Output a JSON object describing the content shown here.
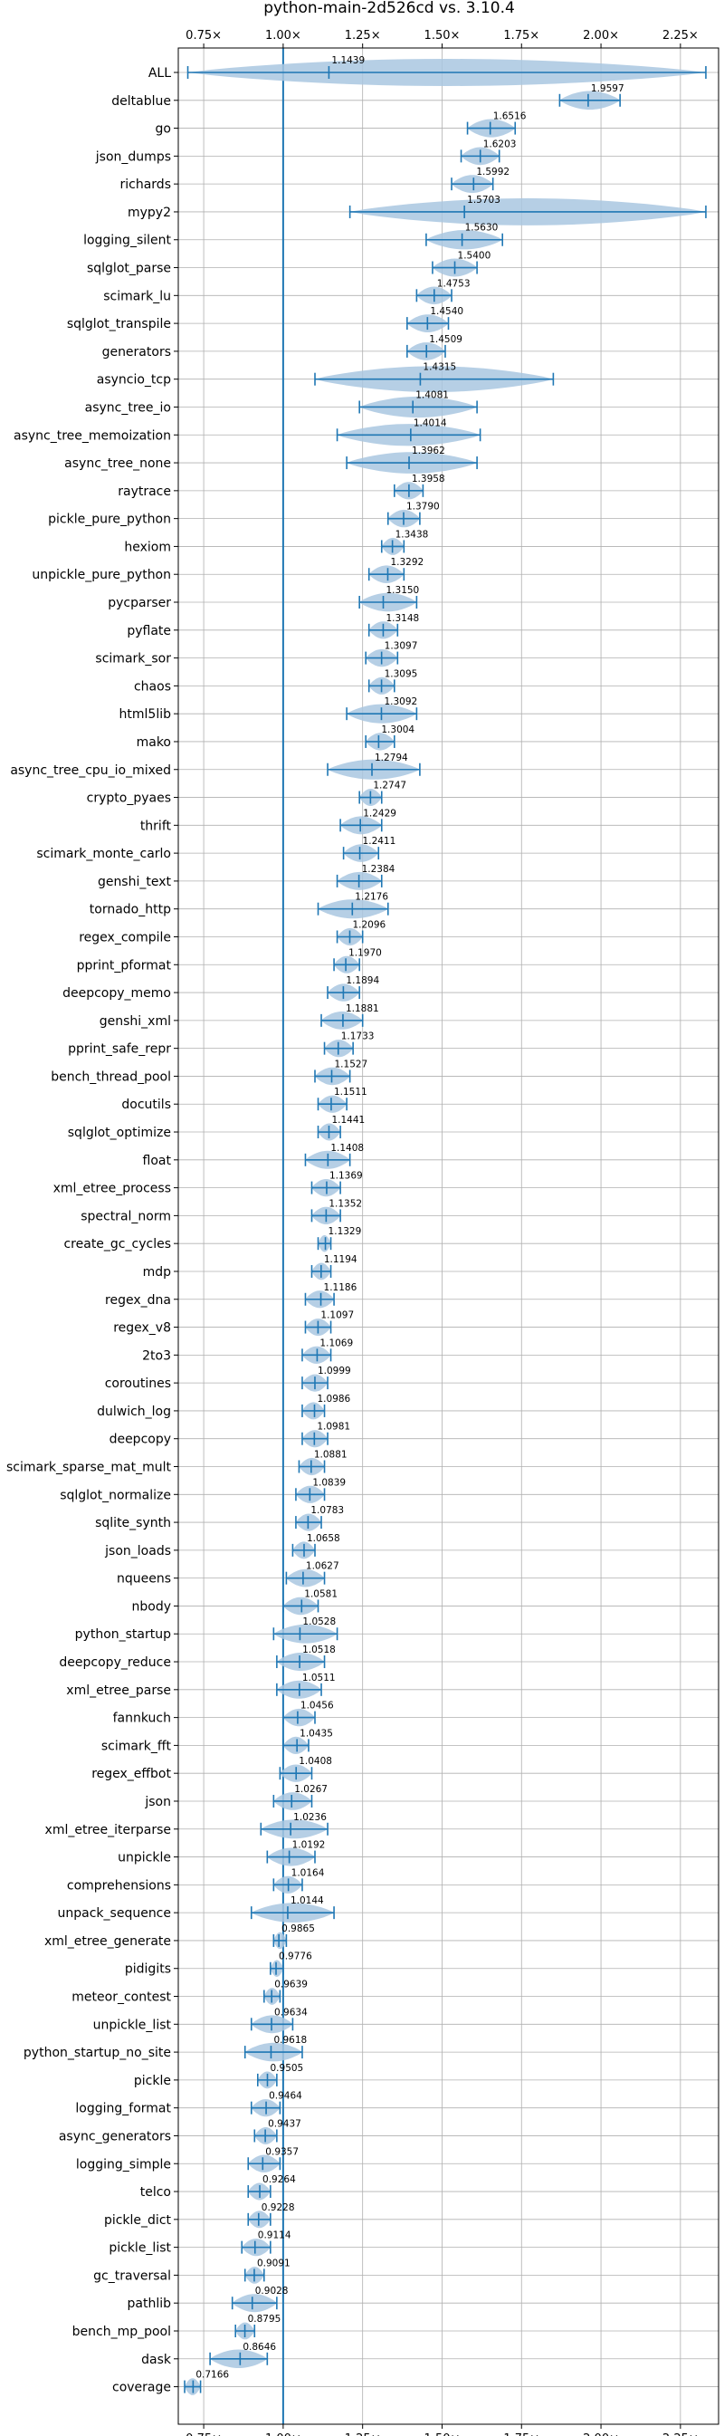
{
  "chart_data": {
    "type": "violin",
    "title": "python-main-2d526cd vs. 3.10.4",
    "xlim": [
      0.67,
      2.37
    ],
    "xticks": [
      0.75,
      1.0,
      1.25,
      1.5,
      1.75,
      2.0,
      2.25
    ],
    "xtick_labels": [
      "0.75×",
      "1.00×",
      "1.25×",
      "1.50×",
      "1.75×",
      "2.00×",
      "2.25×"
    ],
    "reference_line": 1.0,
    "grid": true,
    "colors": {
      "violin": "#a9c7e0",
      "whisker": "#1f77b4",
      "reference": "#1f77b4"
    },
    "categories": [
      "ALL",
      "deltablue",
      "go",
      "json_dumps",
      "richards",
      "mypy2",
      "logging_silent",
      "sqlglot_parse",
      "scimark_lu",
      "sqlglot_transpile",
      "generators",
      "asyncio_tcp",
      "async_tree_io",
      "async_tree_memoization",
      "async_tree_none",
      "raytrace",
      "pickle_pure_python",
      "hexiom",
      "unpickle_pure_python",
      "pycparser",
      "pyflate",
      "scimark_sor",
      "chaos",
      "html5lib",
      "mako",
      "async_tree_cpu_io_mixed",
      "crypto_pyaes",
      "thrift",
      "scimark_monte_carlo",
      "genshi_text",
      "tornado_http",
      "regex_compile",
      "pprint_pformat",
      "deepcopy_memo",
      "genshi_xml",
      "pprint_safe_repr",
      "bench_thread_pool",
      "docutils",
      "sqlglot_optimize",
      "float",
      "xml_etree_process",
      "spectral_norm",
      "create_gc_cycles",
      "mdp",
      "regex_dna",
      "regex_v8",
      "2to3",
      "coroutines",
      "dulwich_log",
      "deepcopy",
      "scimark_sparse_mat_mult",
      "sqlglot_normalize",
      "sqlite_synth",
      "json_loads",
      "nqueens",
      "nbody",
      "python_startup",
      "deepcopy_reduce",
      "xml_etree_parse",
      "fannkuch",
      "scimark_fft",
      "regex_effbot",
      "json",
      "xml_etree_iterparse",
      "unpickle",
      "comprehensions",
      "unpack_sequence",
      "xml_etree_generate",
      "pidigits",
      "meteor_contest",
      "unpickle_list",
      "python_startup_no_site",
      "pickle",
      "logging_format",
      "async_generators",
      "logging_simple",
      "telco",
      "pickle_dict",
      "pickle_list",
      "gc_traversal",
      "pathlib",
      "bench_mp_pool",
      "dask",
      "coverage"
    ],
    "values": [
      1.1439,
      1.9597,
      1.6516,
      1.6203,
      1.5992,
      1.5703,
      1.563,
      1.54,
      1.4753,
      1.454,
      1.4509,
      1.4315,
      1.4081,
      1.4014,
      1.3962,
      1.3958,
      1.379,
      1.3438,
      1.3292,
      1.315,
      1.3148,
      1.3097,
      1.3095,
      1.3092,
      1.3004,
      1.2794,
      1.2747,
      1.2429,
      1.2411,
      1.2384,
      1.2176,
      1.2096,
      1.197,
      1.1894,
      1.1881,
      1.1733,
      1.1527,
      1.1511,
      1.1441,
      1.1408,
      1.1369,
      1.1352,
      1.1329,
      1.1194,
      1.1186,
      1.1097,
      1.1069,
      1.0999,
      1.0986,
      1.0981,
      1.0881,
      1.0839,
      1.0783,
      1.0658,
      1.0627,
      1.0581,
      1.0528,
      1.0518,
      1.0511,
      1.0456,
      1.0435,
      1.0408,
      1.0267,
      1.0236,
      1.0192,
      1.0164,
      1.0144,
      0.9865,
      0.9776,
      0.9639,
      0.9634,
      0.9618,
      0.9505,
      0.9464,
      0.9437,
      0.9357,
      0.9264,
      0.9228,
      0.9114,
      0.9091,
      0.9028,
      0.8795,
      0.8646,
      0.7166
    ],
    "ranges": [
      [
        0.7,
        2.33
      ],
      [
        1.87,
        2.06
      ],
      [
        1.58,
        1.73
      ],
      [
        1.56,
        1.68
      ],
      [
        1.53,
        1.66
      ],
      [
        1.21,
        2.33
      ],
      [
        1.45,
        1.69
      ],
      [
        1.47,
        1.61
      ],
      [
        1.42,
        1.53
      ],
      [
        1.39,
        1.52
      ],
      [
        1.39,
        1.51
      ],
      [
        1.1,
        1.85
      ],
      [
        1.24,
        1.61
      ],
      [
        1.17,
        1.62
      ],
      [
        1.2,
        1.61
      ],
      [
        1.35,
        1.44
      ],
      [
        1.33,
        1.43
      ],
      [
        1.31,
        1.38
      ],
      [
        1.27,
        1.38
      ],
      [
        1.24,
        1.42
      ],
      [
        1.27,
        1.36
      ],
      [
        1.26,
        1.36
      ],
      [
        1.27,
        1.35
      ],
      [
        1.2,
        1.42
      ],
      [
        1.26,
        1.35
      ],
      [
        1.14,
        1.43
      ],
      [
        1.24,
        1.31
      ],
      [
        1.18,
        1.31
      ],
      [
        1.19,
        1.3
      ],
      [
        1.17,
        1.31
      ],
      [
        1.11,
        1.33
      ],
      [
        1.17,
        1.25
      ],
      [
        1.16,
        1.24
      ],
      [
        1.14,
        1.24
      ],
      [
        1.12,
        1.25
      ],
      [
        1.13,
        1.22
      ],
      [
        1.1,
        1.21
      ],
      [
        1.11,
        1.2
      ],
      [
        1.11,
        1.18
      ],
      [
        1.07,
        1.21
      ],
      [
        1.09,
        1.18
      ],
      [
        1.09,
        1.18
      ],
      [
        1.11,
        1.15
      ],
      [
        1.09,
        1.15
      ],
      [
        1.07,
        1.16
      ],
      [
        1.07,
        1.15
      ],
      [
        1.06,
        1.15
      ],
      [
        1.06,
        1.14
      ],
      [
        1.06,
        1.13
      ],
      [
        1.06,
        1.14
      ],
      [
        1.05,
        1.13
      ],
      [
        1.04,
        1.13
      ],
      [
        1.04,
        1.12
      ],
      [
        1.03,
        1.1
      ],
      [
        1.01,
        1.13
      ],
      [
        1.0,
        1.11
      ],
      [
        0.97,
        1.17
      ],
      [
        0.98,
        1.13
      ],
      [
        0.98,
        1.12
      ],
      [
        1.0,
        1.1
      ],
      [
        1.0,
        1.08
      ],
      [
        0.99,
        1.09
      ],
      [
        0.97,
        1.09
      ],
      [
        0.93,
        1.14
      ],
      [
        0.95,
        1.1
      ],
      [
        0.97,
        1.06
      ],
      [
        0.9,
        1.16
      ],
      [
        0.97,
        1.01
      ],
      [
        0.96,
        1.0
      ],
      [
        0.94,
        0.99
      ],
      [
        0.9,
        1.03
      ],
      [
        0.88,
        1.06
      ],
      [
        0.92,
        0.98
      ],
      [
        0.9,
        0.99
      ],
      [
        0.91,
        0.98
      ],
      [
        0.89,
        0.99
      ],
      [
        0.89,
        0.96
      ],
      [
        0.89,
        0.96
      ],
      [
        0.87,
        0.96
      ],
      [
        0.88,
        0.94
      ],
      [
        0.84,
        0.98
      ],
      [
        0.85,
        0.91
      ],
      [
        0.77,
        0.95
      ],
      [
        0.69,
        0.74
      ]
    ]
  }
}
